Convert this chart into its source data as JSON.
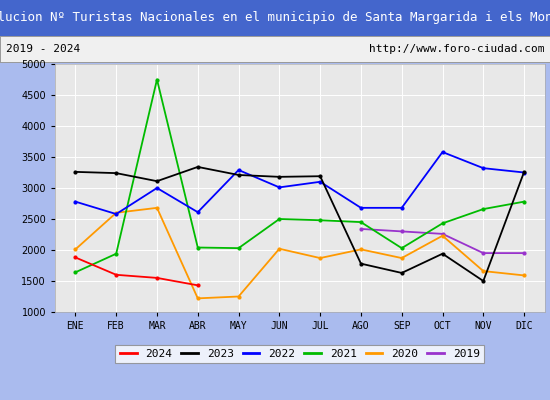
{
  "title": "Evolucion Nº Turistas Nacionales en el municipio de Santa Margarida i els Monjos",
  "subtitle_left": "2019 - 2024",
  "subtitle_right": "http://www.foro-ciudad.com",
  "months": [
    "ENE",
    "FEB",
    "MAR",
    "ABR",
    "MAY",
    "JUN",
    "JUL",
    "AGO",
    "SEP",
    "OCT",
    "NOV",
    "DIC"
  ],
  "ylim": [
    1000,
    5000
  ],
  "yticks": [
    1000,
    1500,
    2000,
    2500,
    3000,
    3500,
    4000,
    4500,
    5000
  ],
  "series": {
    "2024": {
      "color": "#ff0000",
      "values": [
        1880,
        1600,
        1550,
        1430,
        null,
        null,
        null,
        null,
        null,
        null,
        null,
        null
      ]
    },
    "2023": {
      "color": "#000000",
      "values": [
        3260,
        3240,
        3110,
        3340,
        3210,
        3180,
        3190,
        1780,
        1630,
        1940,
        1500,
        3260
      ]
    },
    "2022": {
      "color": "#0000ff",
      "values": [
        2780,
        2580,
        3000,
        2610,
        3290,
        3010,
        3100,
        2680,
        2680,
        3580,
        3320,
        3250
      ]
    },
    "2021": {
      "color": "#00bb00",
      "values": [
        1640,
        1940,
        4750,
        2040,
        2030,
        2500,
        2480,
        2450,
        2030,
        2430,
        2660,
        2780
      ]
    },
    "2020": {
      "color": "#ff9900",
      "values": [
        2010,
        2600,
        2680,
        1220,
        1250,
        2020,
        1870,
        2010,
        1870,
        2230,
        1660,
        1590
      ]
    },
    "2019": {
      "color": "#9933cc",
      "values": [
        null,
        null,
        null,
        null,
        null,
        null,
        null,
        2340,
        2300,
        2260,
        1950,
        1950
      ]
    }
  },
  "title_bg": "#4466cc",
  "title_color": "#ffffff",
  "subtitle_bg": "#f0f0f0",
  "subtitle_color": "#000000",
  "outer_bg": "#aabbee",
  "plot_bg": "#e8e8e8",
  "grid_color": "#ffffff",
  "title_fontsize": 9,
  "subtitle_fontsize": 8,
  "tick_fontsize": 7,
  "legend_fontsize": 8
}
